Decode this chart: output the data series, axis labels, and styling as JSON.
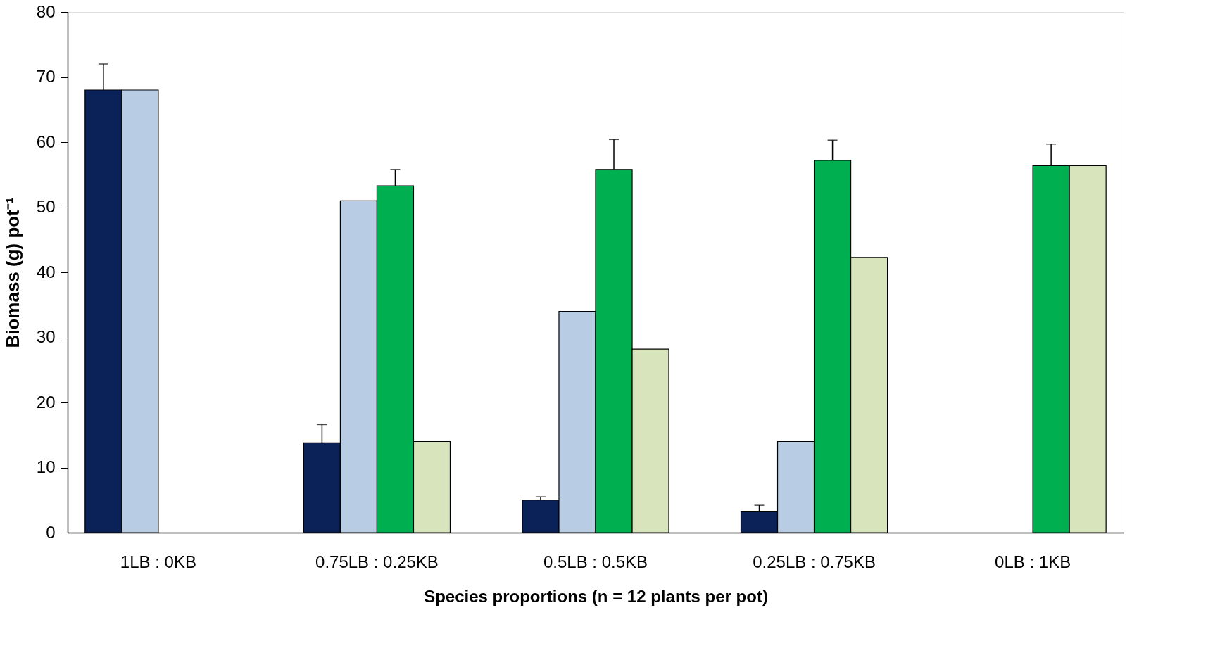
{
  "chart_data": {
    "type": "bar",
    "xlabel": "Species  proportions  (n =  12 plants per pot)",
    "ylabel": "Biomass (g) pot⁻¹",
    "categories": [
      "1LB : 0KB",
      "0.75LB : 0.25KB",
      "0.5LB : 0.5KB",
      "0.25LB : 0.75KB",
      "0LB : 1KB"
    ],
    "series": [
      {
        "color": "#0a2258",
        "values": [
          68,
          13.8,
          5.0,
          3.3,
          null
        ],
        "errors": [
          [
            68,
            72
          ],
          [
            13.8,
            16.6
          ],
          [
            5.0,
            5.5
          ],
          [
            3.3,
            4.2
          ],
          null
        ]
      },
      {
        "color": "#b8cce4",
        "values": [
          68,
          51,
          34,
          14,
          null
        ]
      },
      {
        "color": "#00b050",
        "values": [
          null,
          53.3,
          55.8,
          57.2,
          56.4
        ],
        "errors": [
          null,
          [
            53.3,
            55.8
          ],
          [
            55.8,
            60.4
          ],
          [
            57.2,
            60.3
          ],
          [
            56.4,
            59.7
          ]
        ]
      },
      {
        "color": "#d8e4bc",
        "values": [
          null,
          14,
          28.2,
          42.3,
          56.4
        ]
      }
    ],
    "ylim": [
      0,
      80
    ],
    "yticks": [
      0,
      10,
      20,
      30,
      40,
      50,
      60,
      70,
      80
    ],
    "grid": false,
    "legend": false
  }
}
